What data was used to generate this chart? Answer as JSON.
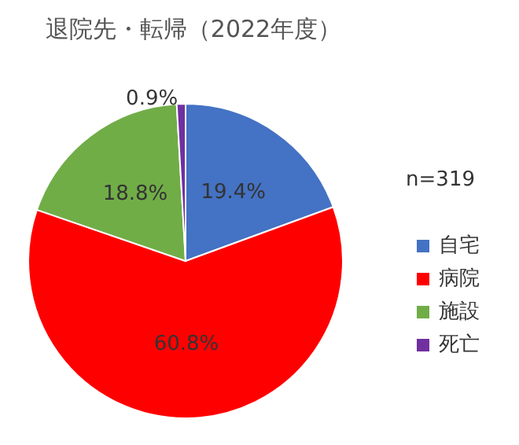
{
  "chart_data": {
    "type": "pie",
    "title": "退院先・転帰（2022年度）",
    "categories": [
      "自宅",
      "病院",
      "施設",
      "死亡"
    ],
    "values": [
      19.4,
      60.8,
      18.8,
      0.9
    ],
    "value_labels": [
      "19.4%",
      "60.8%",
      "18.8%",
      "0.9%"
    ],
    "colors": [
      "#4472c4",
      "#ff0000",
      "#70ad47",
      "#7030a0"
    ],
    "annotations": [
      "n=319"
    ],
    "legend": "right"
  }
}
